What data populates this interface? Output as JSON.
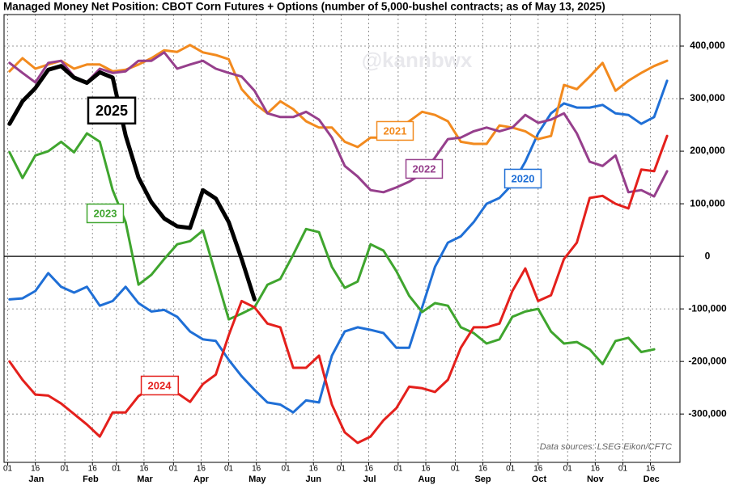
{
  "chart_data": {
    "type": "line",
    "title": "Managed Money Net Position: CBOT Corn Futures + Options (number of 5,000-bushel contracts; as of May 13, 2025)",
    "watermark": "@kannbwx",
    "source": "Data sources: LSEG Eikon/CFTC",
    "x": [
      2,
      9,
      16,
      23,
      30,
      37,
      44,
      51,
      58,
      65,
      72,
      79,
      86,
      93,
      100,
      107,
      114,
      121,
      128,
      135,
      142,
      149,
      156,
      163,
      170,
      177,
      184,
      191,
      198,
      205,
      212,
      219,
      226,
      233,
      240,
      247,
      254,
      261,
      268,
      275,
      282,
      289,
      296,
      303,
      310,
      317,
      324,
      331,
      338,
      345,
      352,
      359
    ],
    "xlim": [
      -1,
      366
    ],
    "xticks": [
      {
        "value": 1,
        "label": "01"
      },
      {
        "value": 16,
        "label": "16"
      },
      {
        "value": 32,
        "label": "01"
      },
      {
        "value": 47,
        "label": "16"
      },
      {
        "value": 60,
        "label": "01"
      },
      {
        "value": 75,
        "label": "16"
      },
      {
        "value": 91,
        "label": "01"
      },
      {
        "value": 106,
        "label": "16"
      },
      {
        "value": 121,
        "label": "01"
      },
      {
        "value": 136,
        "label": "16"
      },
      {
        "value": 152,
        "label": "01"
      },
      {
        "value": 167,
        "label": "16"
      },
      {
        "value": 182,
        "label": "01"
      },
      {
        "value": 197,
        "label": "16"
      },
      {
        "value": 213,
        "label": "01"
      },
      {
        "value": 228,
        "label": "16"
      },
      {
        "value": 244,
        "label": "01"
      },
      {
        "value": 259,
        "label": "16"
      },
      {
        "value": 274,
        "label": "01"
      },
      {
        "value": 289,
        "label": "16"
      },
      {
        "value": 305,
        "label": "01"
      },
      {
        "value": 320,
        "label": "16"
      },
      {
        "value": 335,
        "label": "01"
      },
      {
        "value": 350,
        "label": "16"
      }
    ],
    "month_labels": [
      "Jan",
      "Feb",
      "Mar",
      "Apr",
      "May",
      "Jun",
      "Jul",
      "Aug",
      "Sep",
      "Oct",
      "Nov",
      "Dec"
    ],
    "ylim": [
      -392000,
      460000
    ],
    "yticks": [
      {
        "value": -300000,
        "label": "-300,000"
      },
      {
        "value": -200000,
        "label": "-200,000"
      },
      {
        "value": -100000,
        "label": "-100,000"
      },
      0,
      {
        "value": 100000,
        "label": "100,000"
      },
      {
        "value": 200000,
        "label": "200,000"
      },
      {
        "value": 300000,
        "label": "300,000"
      },
      {
        "value": 400000,
        "label": "400,000"
      }
    ],
    "grid": true,
    "series": [
      {
        "name": "2020",
        "color": "#1f6fd6",
        "values": [
          -82000,
          -80000,
          -66000,
          -32000,
          -58000,
          -69000,
          -58000,
          -94000,
          -85000,
          -58000,
          -89000,
          -105000,
          -102000,
          -115000,
          -143000,
          -158000,
          -161000,
          -197000,
          -228000,
          -254000,
          -278000,
          -282000,
          -297000,
          -274000,
          -278000,
          -189000,
          -143000,
          -135000,
          -140000,
          -146000,
          -174000,
          -174000,
          -97000,
          -20000,
          26000,
          38000,
          65000,
          100000,
          111000,
          137000,
          180000,
          234000,
          272000,
          291000,
          283000,
          283000,
          288000,
          272000,
          269000,
          252000,
          265000,
          334000
        ]
      },
      {
        "name": "2021",
        "color": "#f28a1e",
        "values": [
          352000,
          377000,
          357000,
          365000,
          372000,
          357000,
          365000,
          365000,
          352000,
          355000,
          365000,
          377000,
          392000,
          389000,
          402000,
          388000,
          383000,
          375000,
          318000,
          291000,
          272000,
          295000,
          280000,
          257000,
          245000,
          245000,
          218000,
          208000,
          226000,
          226000,
          242000,
          257000,
          275000,
          269000,
          257000,
          218000,
          214000,
          214000,
          249000,
          245000,
          238000,
          223000,
          229000,
          326000,
          318000,
          342000,
          368000,
          315000,
          334000,
          349000,
          362000,
          372000
        ]
      },
      {
        "name": "2022",
        "color": "#963f8c",
        "values": [
          368000,
          349000,
          331000,
          368000,
          372000,
          342000,
          331000,
          357000,
          349000,
          352000,
          372000,
          372000,
          388000,
          357000,
          365000,
          372000,
          357000,
          349000,
          342000,
          315000,
          272000,
          265000,
          265000,
          275000,
          260000,
          226000,
          172000,
          152000,
          126000,
          122000,
          131000,
          142000,
          157000,
          188000,
          223000,
          226000,
          238000,
          245000,
          238000,
          245000,
          269000,
          254000,
          260000,
          272000,
          234000,
          180000,
          172000,
          192000,
          122000,
          126000,
          114000,
          162000
        ]
      },
      {
        "name": "2023",
        "color": "#3fa52e",
        "values": [
          198000,
          149000,
          192000,
          200000,
          218000,
          198000,
          234000,
          218000,
          126000,
          65000,
          -54000,
          -35000,
          -5000,
          23000,
          29000,
          49000,
          -35000,
          -120000,
          -109000,
          -97000,
          -54000,
          -43000,
          3000,
          52000,
          46000,
          -20000,
          -60000,
          -48000,
          23000,
          11000,
          -28000,
          -75000,
          -106000,
          -89000,
          -94000,
          -135000,
          -146000,
          -166000,
          -158000,
          -115000,
          -105000,
          -100000,
          -143000,
          -166000,
          -163000,
          -177000,
          -205000,
          -161000,
          -155000,
          -182000,
          -177000,
          null
        ]
      },
      {
        "name": "2024",
        "color": "#e4201c",
        "values": [
          -200000,
          -235000,
          -263000,
          -265000,
          -280000,
          -300000,
          -320000,
          -343000,
          -297000,
          -297000,
          -266000,
          -250000,
          -250000,
          -260000,
          -277000,
          -243000,
          -225000,
          -150000,
          -85000,
          -97000,
          -128000,
          -135000,
          -212000,
          -212000,
          -189000,
          -282000,
          -335000,
          -355000,
          -343000,
          -312000,
          -289000,
          -248000,
          -251000,
          -258000,
          -235000,
          -174000,
          -135000,
          -135000,
          -128000,
          -66000,
          -23000,
          -85000,
          -74000,
          -5000,
          26000,
          111000,
          115000,
          100000,
          91000,
          165000,
          162000,
          229000
        ]
      },
      {
        "name": "2025",
        "color": "#000000",
        "values": [
          252000,
          295000,
          320000,
          355000,
          362000,
          340000,
          330000,
          350000,
          340000,
          230000,
          150000,
          103000,
          72000,
          57000,
          54000,
          126000,
          110000,
          65000,
          -5000,
          -82000,
          null,
          null,
          null,
          null,
          null,
          null,
          null,
          null,
          null,
          null,
          null,
          null,
          null,
          null,
          null,
          null,
          null,
          null,
          null,
          null,
          null,
          null,
          null,
          null,
          null,
          null,
          null,
          null,
          null,
          null,
          null,
          null
        ]
      }
    ]
  }
}
